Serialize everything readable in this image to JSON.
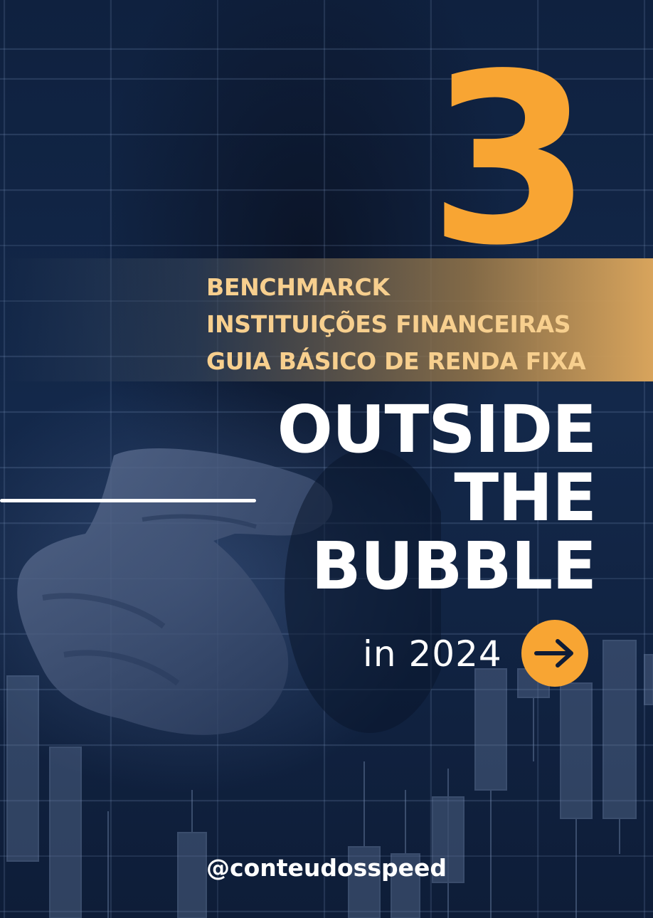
{
  "cover": {
    "number": "3",
    "topics": [
      "BENCHMARCK",
      "INSTITUIÇÕES FINANCEIRAS",
      "GUIA BÁSICO DE RENDA FIXA"
    ],
    "title_lines": [
      "OUTSIDE",
      "THE",
      "BUBBLE"
    ],
    "year_text": "in 2024",
    "handle": "@conteudosspeed",
    "icons": {
      "arrow": "arrow-right-icon"
    },
    "colors": {
      "accent": "#f8a533",
      "background": "#0f213f",
      "topic_text": "#f7cf8e",
      "title_text": "#ffffff"
    }
  }
}
